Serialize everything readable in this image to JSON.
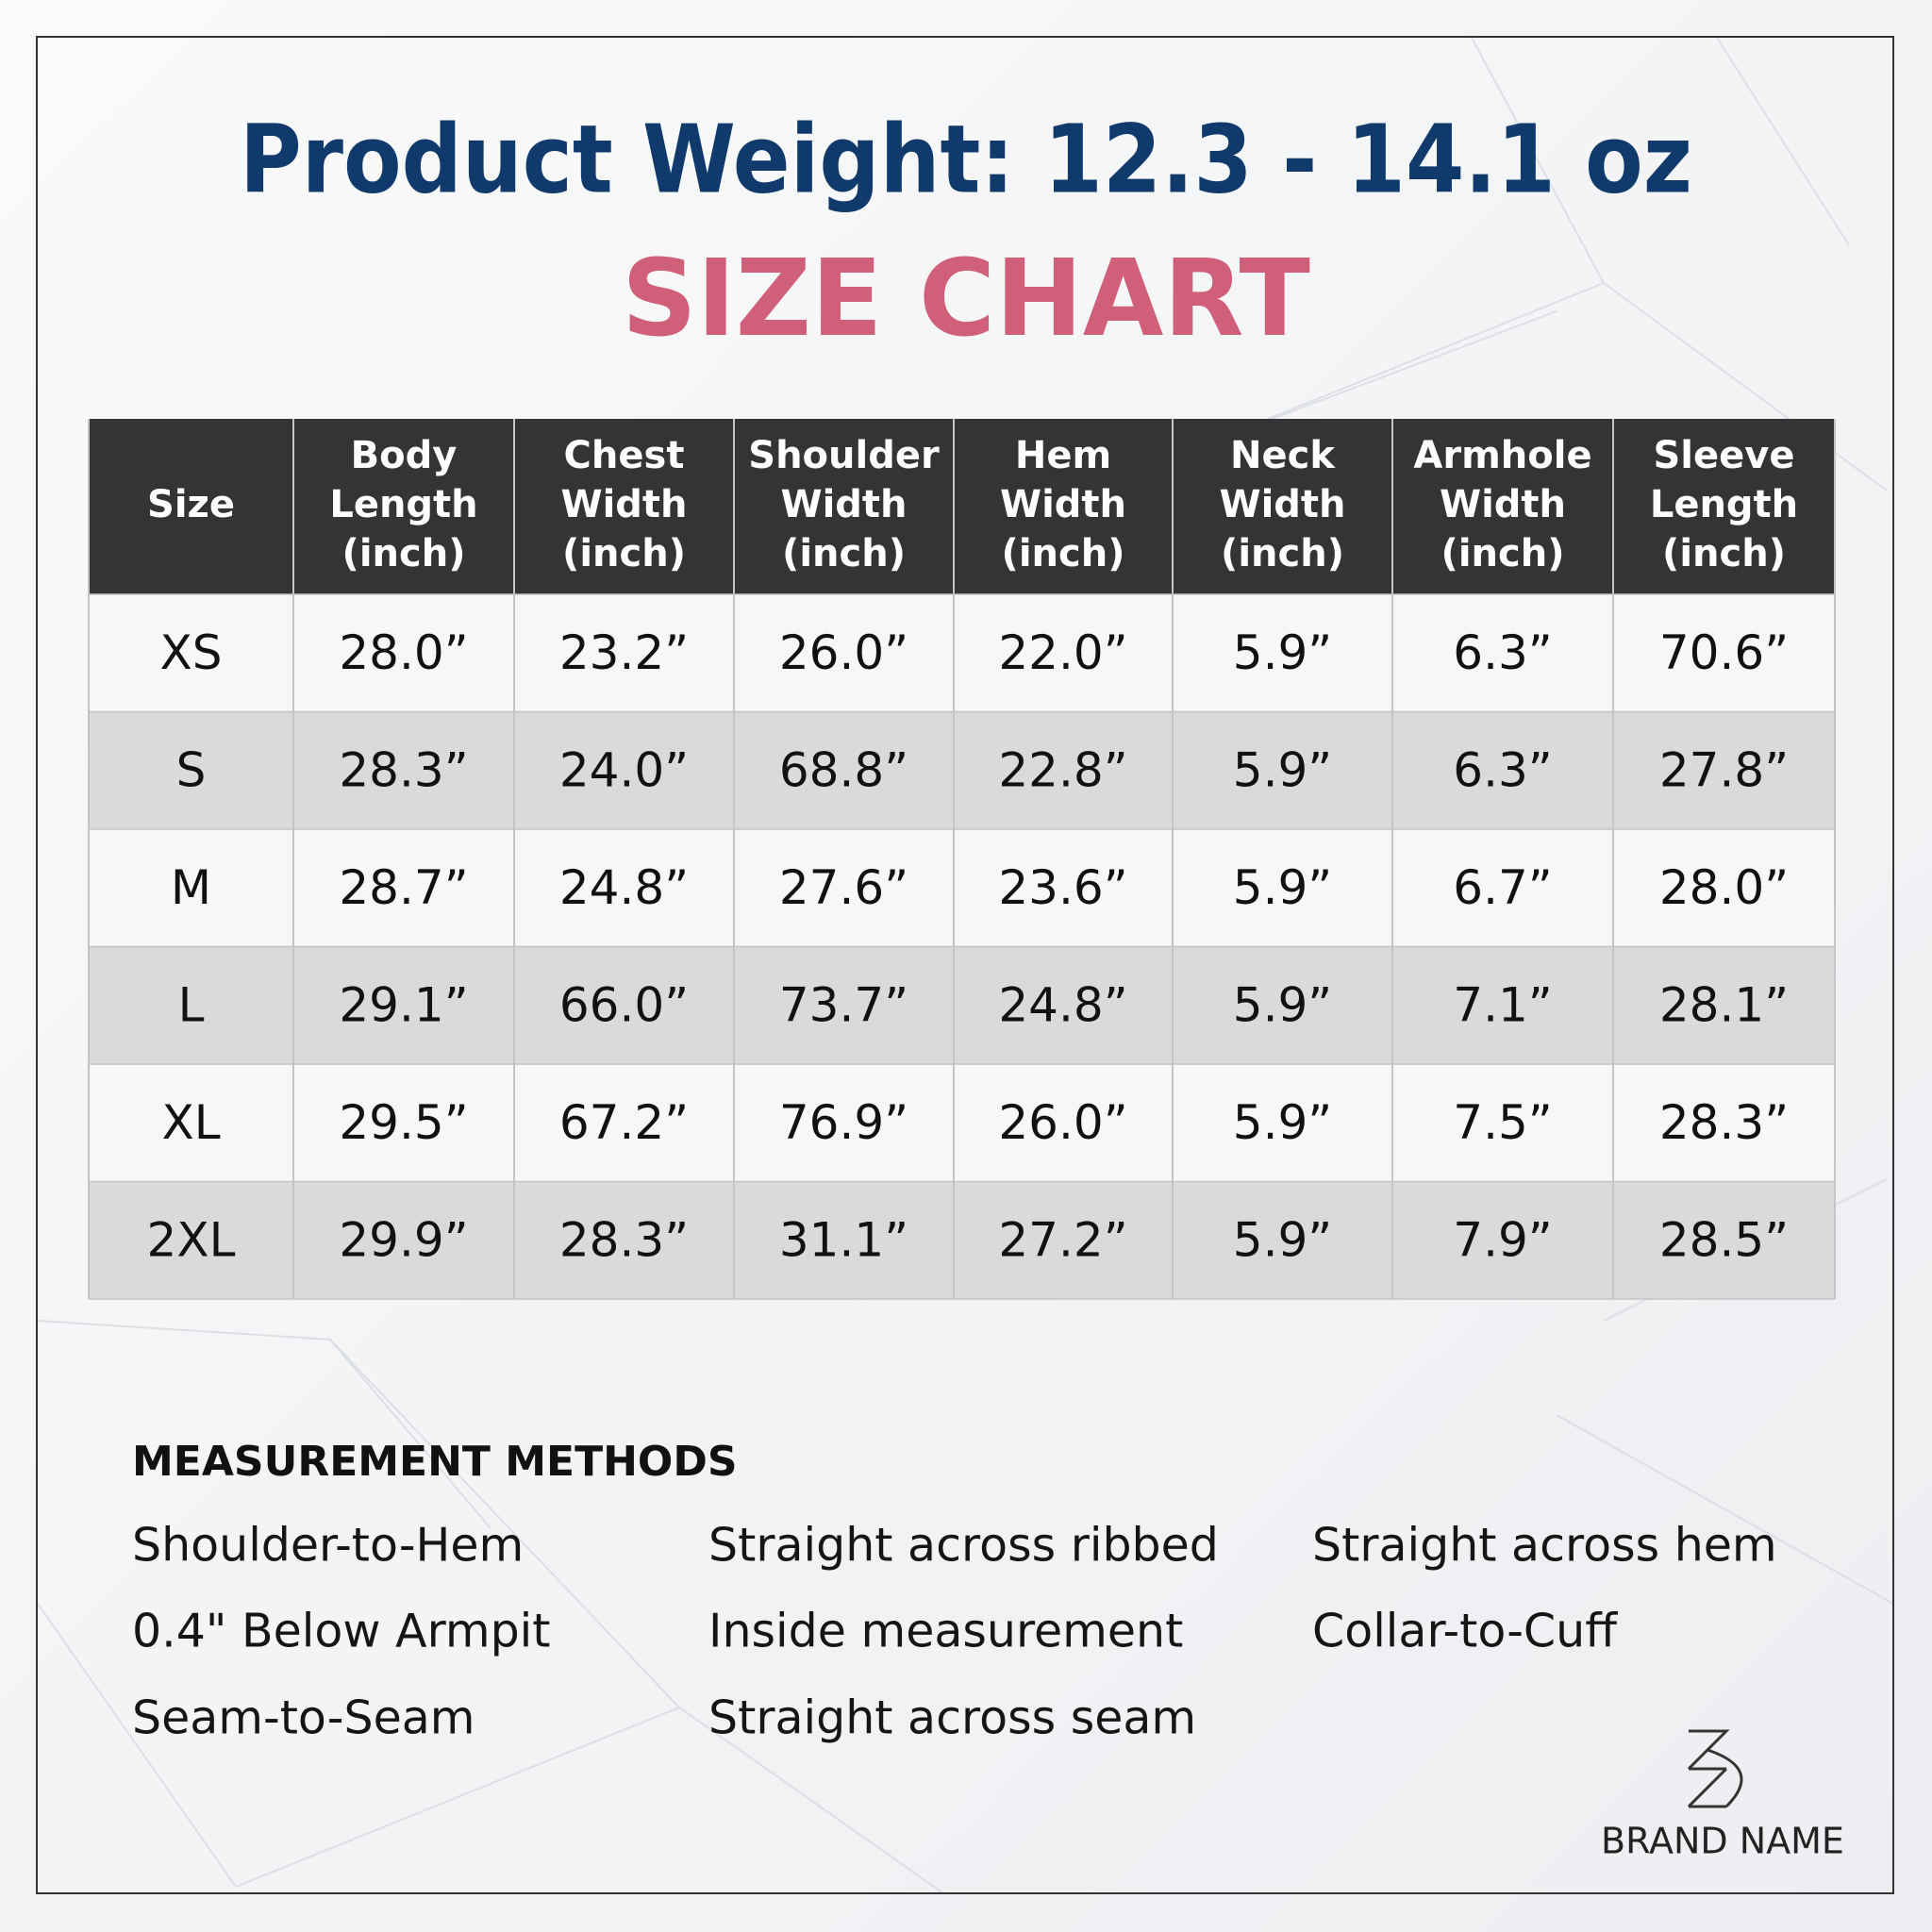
{
  "header": {
    "title": "Product Weight: 12.3 - 14.1 oz",
    "subtitle": "SIZE CHART"
  },
  "table": {
    "columns": [
      [
        "Size"
      ],
      [
        "Body",
        "Length",
        "(inch)"
      ],
      [
        "Chest",
        "Width",
        "(inch)"
      ],
      [
        "Shoulder",
        "Width",
        "(inch)"
      ],
      [
        "Hem",
        "Width",
        "(inch)"
      ],
      [
        "Neck",
        "Width",
        "(inch)"
      ],
      [
        "Armhole",
        "Width",
        "(inch)"
      ],
      [
        "Sleeve",
        "Length",
        "(inch)"
      ]
    ],
    "rows": [
      [
        "XS",
        "28.0”",
        "23.2”",
        "26.0”",
        "22.0”",
        "5.9”",
        "6.3”",
        "70.6”"
      ],
      [
        "S",
        "28.3”",
        "24.0”",
        "68.8”",
        "22.8”",
        "5.9”",
        "6.3”",
        "27.8”"
      ],
      [
        "M",
        "28.7”",
        "24.8”",
        "27.6”",
        "23.6”",
        "5.9”",
        "6.7”",
        "28.0”"
      ],
      [
        "L",
        "29.1”",
        "66.0”",
        "73.7”",
        "24.8”",
        "5.9”",
        "7.1”",
        "28.1”"
      ],
      [
        "XL",
        "29.5”",
        "67.2”",
        "76.9”",
        "26.0”",
        "5.9”",
        "7.5”",
        "28.3”"
      ],
      [
        "2XL",
        "29.9”",
        "28.3”",
        "31.1”",
        "27.2”",
        "5.9”",
        "7.9”",
        "28.5”"
      ]
    ]
  },
  "methods": {
    "heading": "MEASUREMENT METHODS",
    "rows": [
      [
        "Shoulder-to-Hem",
        "Straight across ribbed",
        "Straight across hem"
      ],
      [
        "0.4\" Below Armpit",
        "Inside measurement",
        "Collar-to-Cuff"
      ],
      [
        "Seam-to-Seam",
        "Straight across seam"
      ]
    ]
  },
  "brand": {
    "name": "BRAND NAME"
  }
}
